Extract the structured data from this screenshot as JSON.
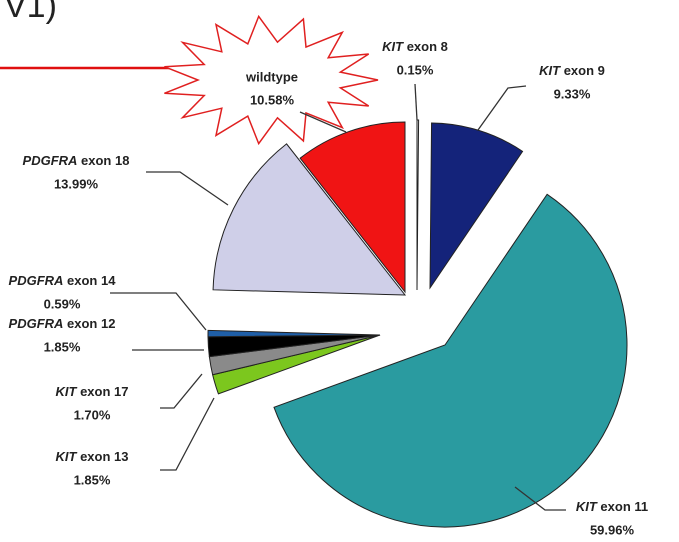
{
  "header_fragment": "V1)",
  "chart_data": {
    "type": "pie",
    "categories": [
      "KIT exon 8",
      "KIT exon 9",
      "KIT exon 11",
      "KIT exon 13",
      "KIT exon 17",
      "PDGFRA exon 12",
      "PDGFRA exon 14",
      "PDGFRA exon 18",
      "wildtype"
    ],
    "values": [
      0.15,
      9.33,
      59.96,
      1.85,
      1.7,
      1.85,
      0.59,
      13.99,
      10.58
    ],
    "value_labels": [
      "0.15%",
      "9.33%",
      "59.96%",
      "1.85%",
      "1.70%",
      "1.85%",
      "0.59%",
      "13.99%",
      "10.58%"
    ],
    "colors": [
      "#f2f2f2",
      "#14237a",
      "#2a9ba0",
      "#7cc71e",
      "#8a8a8a",
      "#000000",
      "#1f5fa8",
      "#cfcfe8",
      "#f01414"
    ]
  }
}
